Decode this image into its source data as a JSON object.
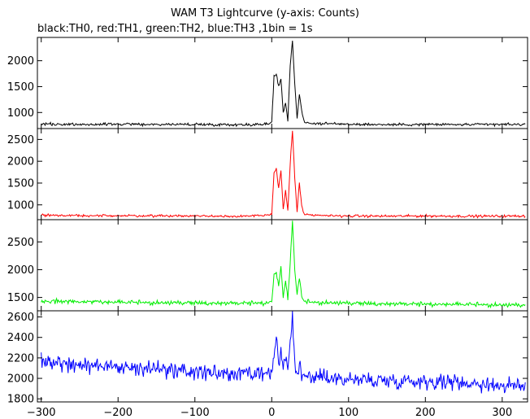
{
  "chart_data": [
    {
      "type": "line",
      "title": "WAM T3 Lightcurve (y-axis: Counts)",
      "subtitle": "black:TH0, red:TH1, green:TH2, blue:TH3 ,1bin = 1s",
      "xlim": [
        -305,
        333
      ],
      "x_ticks": [
        -300,
        -200,
        -100,
        0,
        100,
        200,
        300
      ],
      "x_tick_labels": [
        "−300",
        "−200",
        "−100",
        "0",
        "100",
        "200",
        "300"
      ],
      "series": [
        {
          "color": "#000000",
          "ylim": [
            690,
            2450
          ],
          "y_ticks": [
            1000,
            1500,
            2000
          ],
          "x": [
            -300,
            -250,
            -200,
            -150,
            -100,
            -50,
            -10,
            0,
            3,
            6,
            9,
            12,
            15,
            18,
            21,
            24,
            27,
            30,
            33,
            36,
            39,
            42,
            50,
            100,
            150,
            200,
            250,
            300,
            330
          ],
          "y": [
            780,
            770,
            775,
            770,
            770,
            765,
            770,
            800,
            1700,
            1750,
            1500,
            1650,
            1000,
            1200,
            850,
            1900,
            2380,
            1550,
            900,
            1350,
            1050,
            820,
            790,
            775,
            765,
            770,
            765,
            770,
            770
          ],
          "noise": 18
        },
        {
          "color": "#ff0000",
          "ylim": [
            660,
            2750
          ],
          "y_ticks": [
            1000,
            1500,
            2000,
            2500
          ],
          "x": [
            -300,
            -250,
            -200,
            -150,
            -100,
            -50,
            -10,
            0,
            3,
            6,
            9,
            12,
            15,
            18,
            21,
            24,
            27,
            30,
            33,
            36,
            39,
            42,
            50,
            100,
            150,
            200,
            250,
            300,
            330
          ],
          "y": [
            760,
            755,
            750,
            750,
            745,
            740,
            750,
            780,
            1750,
            1820,
            1400,
            1780,
            900,
            1350,
            850,
            1950,
            2700,
            1600,
            850,
            1500,
            1000,
            780,
            760,
            745,
            740,
            745,
            740,
            740,
            745
          ],
          "noise": 20
        },
        {
          "color": "#00ee00",
          "ylim": [
            1260,
            2900
          ],
          "y_ticks": [
            1500,
            2000,
            2500
          ],
          "x": [
            -300,
            -250,
            -200,
            -150,
            -100,
            -50,
            -10,
            0,
            3,
            6,
            9,
            12,
            15,
            18,
            21,
            24,
            27,
            30,
            33,
            36,
            39,
            42,
            50,
            100,
            150,
            200,
            250,
            300,
            330
          ],
          "y": [
            1440,
            1415,
            1410,
            1400,
            1395,
            1390,
            1395,
            1420,
            1900,
            1950,
            1700,
            2050,
            1500,
            1800,
            1450,
            2100,
            2880,
            2000,
            1550,
            1850,
            1500,
            1430,
            1410,
            1390,
            1380,
            1375,
            1370,
            1360,
            1355
          ],
          "noise": 28
        },
        {
          "color": "#0000ff",
          "ylim": [
            1770,
            2660
          ],
          "y_ticks": [
            1800,
            2000,
            2200,
            2400,
            2600
          ],
          "x": [
            -300,
            -250,
            -200,
            -150,
            -100,
            -50,
            -10,
            0,
            3,
            6,
            9,
            12,
            15,
            18,
            21,
            24,
            27,
            30,
            33,
            36,
            39,
            42,
            50,
            100,
            150,
            200,
            250,
            300,
            330
          ],
          "y": [
            2180,
            2130,
            2110,
            2090,
            2060,
            2040,
            2030,
            2050,
            2250,
            2380,
            2150,
            2250,
            2080,
            2200,
            2050,
            2350,
            2630,
            2150,
            2020,
            2120,
            2000,
            2020,
            2020,
            1990,
            1980,
            1975,
            1960,
            1930,
            1920
          ],
          "noise": 55
        }
      ]
    }
  ]
}
